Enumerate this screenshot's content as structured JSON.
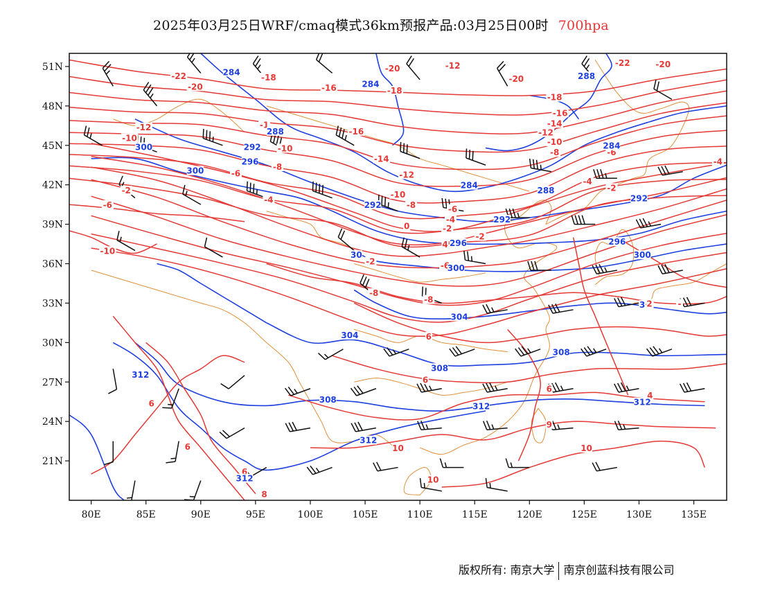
{
  "title": {
    "main": "2025年03月25日WRF/cmaq模式36km预报产品:03月25日00时",
    "level": "700hpa",
    "level_color": "#e33333"
  },
  "map": {
    "lon_range": [
      78,
      138
    ],
    "lat_range": [
      18,
      52
    ],
    "x_ticks": [
      {
        "lon": 80,
        "label": "80E"
      },
      {
        "lon": 85,
        "label": "85E"
      },
      {
        "lon": 90,
        "label": "90E"
      },
      {
        "lon": 95,
        "label": "95E"
      },
      {
        "lon": 100,
        "label": "100E"
      },
      {
        "lon": 105,
        "label": "105E"
      },
      {
        "lon": 110,
        "label": "110E"
      },
      {
        "lon": 115,
        "label": "115E"
      },
      {
        "lon": 120,
        "label": "120E"
      },
      {
        "lon": 125,
        "label": "125E"
      },
      {
        "lon": 130,
        "label": "130E"
      },
      {
        "lon": 135,
        "label": "135E"
      }
    ],
    "y_ticks": [
      {
        "lat": 51,
        "label": "51N"
      },
      {
        "lat": 48,
        "label": "48N"
      },
      {
        "lat": 45,
        "label": "45N"
      },
      {
        "lat": 42,
        "label": "42N"
      },
      {
        "lat": 39,
        "label": "39N"
      },
      {
        "lat": 36,
        "label": "36N"
      },
      {
        "lat": 33,
        "label": "33N"
      },
      {
        "lat": 30,
        "label": "30N"
      },
      {
        "lat": 27,
        "label": "27N"
      },
      {
        "lat": 24,
        "label": "24N"
      },
      {
        "lat": 21,
        "label": "21N"
      }
    ],
    "colors": {
      "temperature": "#e53935",
      "height": "#1e40e0",
      "boundary": "#e0903a",
      "wind": "#111111"
    },
    "temp_labels": [
      {
        "lon": 107.5,
        "lat": 50.8,
        "text": "-20"
      },
      {
        "lon": 88,
        "lat": 50.2,
        "text": "-22"
      },
      {
        "lon": 89.5,
        "lat": 49.4,
        "text": "-20"
      },
      {
        "lon": 96.2,
        "lat": 50.1,
        "text": "-18"
      },
      {
        "lon": 101.7,
        "lat": 49.3,
        "text": "-16"
      },
      {
        "lon": 107.7,
        "lat": 49.1,
        "text": "-18"
      },
      {
        "lon": 118.8,
        "lat": 50.0,
        "text": "-20"
      },
      {
        "lon": 113,
        "lat": 51.0,
        "text": "-12"
      },
      {
        "lon": 128.5,
        "lat": 51.2,
        "text": "-22"
      },
      {
        "lon": 132.2,
        "lat": 51.1,
        "text": "-20"
      },
      {
        "lon": 122.3,
        "lat": 48.6,
        "text": "-18"
      },
      {
        "lon": 122.8,
        "lat": 47.4,
        "text": "-16"
      },
      {
        "lon": 122.3,
        "lat": 46.6,
        "text": "-14"
      },
      {
        "lon": 121.5,
        "lat": 45.9,
        "text": "-12"
      },
      {
        "lon": 122.3,
        "lat": 45.2,
        "text": "-10"
      },
      {
        "lon": 122.3,
        "lat": 44.4,
        "text": "-8"
      },
      {
        "lon": 127.5,
        "lat": 44.4,
        "text": "-6"
      },
      {
        "lon": 137.2,
        "lat": 43.7,
        "text": "-4"
      },
      {
        "lon": 125.3,
        "lat": 42.2,
        "text": "-4"
      },
      {
        "lon": 127.5,
        "lat": 41.7,
        "text": "-2"
      },
      {
        "lon": 84.8,
        "lat": 46.3,
        "text": "-12"
      },
      {
        "lon": 83.5,
        "lat": 45.5,
        "text": "-10"
      },
      {
        "lon": 95.8,
        "lat": 46.5,
        "text": "-1"
      },
      {
        "lon": 97.7,
        "lat": 44.7,
        "text": "-10"
      },
      {
        "lon": 97.0,
        "lat": 43.3,
        "text": "-8"
      },
      {
        "lon": 104.2,
        "lat": 46.0,
        "text": "-16"
      },
      {
        "lon": 106.5,
        "lat": 43.9,
        "text": "-14"
      },
      {
        "lon": 108.8,
        "lat": 42.7,
        "text": "-12"
      },
      {
        "lon": 108.0,
        "lat": 41.2,
        "text": "-10"
      },
      {
        "lon": 109.2,
        "lat": 40.4,
        "text": "-8"
      },
      {
        "lon": 113.0,
        "lat": 40.1,
        "text": "-6"
      },
      {
        "lon": 112.8,
        "lat": 39.3,
        "text": "-4"
      },
      {
        "lon": 112.5,
        "lat": 38.6,
        "text": "-2"
      },
      {
        "lon": 115.5,
        "lat": 38.0,
        "text": "-2"
      },
      {
        "lon": 93.2,
        "lat": 42.8,
        "text": "-6"
      },
      {
        "lon": 96.2,
        "lat": 40.8,
        "text": "-4"
      },
      {
        "lon": 83.2,
        "lat": 41.5,
        "text": "-2"
      },
      {
        "lon": 81.5,
        "lat": 40.4,
        "text": "-6"
      },
      {
        "lon": 81.5,
        "lat": 36.9,
        "text": "-10"
      },
      {
        "lon": 108.8,
        "lat": 38.8,
        "text": "0"
      },
      {
        "lon": 105.5,
        "lat": 36.1,
        "text": "-2"
      },
      {
        "lon": 112.3,
        "lat": 37.4,
        "text": "4"
      },
      {
        "lon": 112.3,
        "lat": 35.8,
        "text": "-6"
      },
      {
        "lon": 105.8,
        "lat": 33.7,
        "text": "-8"
      },
      {
        "lon": 110.8,
        "lat": 33.2,
        "text": "-8"
      },
      {
        "lon": 130.8,
        "lat": 32.9,
        "text": "-2"
      },
      {
        "lon": 133.7,
        "lat": 32.9,
        "text": "-"
      },
      {
        "lon": 110.8,
        "lat": 30.4,
        "text": "6"
      },
      {
        "lon": 110.5,
        "lat": 27.1,
        "text": "6"
      },
      {
        "lon": 121.8,
        "lat": 26.4,
        "text": "6"
      },
      {
        "lon": 131.0,
        "lat": 25.9,
        "text": "4"
      },
      {
        "lon": 121.8,
        "lat": 23.7,
        "text": "9"
      },
      {
        "lon": 108.0,
        "lat": 21.9,
        "text": "10"
      },
      {
        "lon": 125.2,
        "lat": 21.9,
        "text": "10"
      },
      {
        "lon": 111.2,
        "lat": 19.5,
        "text": "10"
      },
      {
        "lon": 85.5,
        "lat": 25.3,
        "text": "6"
      },
      {
        "lon": 88.8,
        "lat": 22.0,
        "text": "6"
      },
      {
        "lon": 94.0,
        "lat": 20.1,
        "text": "6"
      },
      {
        "lon": 95.8,
        "lat": 18.4,
        "text": "8"
      }
    ],
    "height_labels": [
      {
        "lon": 92.8,
        "lat": 50.5,
        "text": "284"
      },
      {
        "lon": 105.5,
        "lat": 49.6,
        "text": "284"
      },
      {
        "lon": 125.2,
        "lat": 50.2,
        "text": "288"
      },
      {
        "lon": 96.8,
        "lat": 46.0,
        "text": "288"
      },
      {
        "lon": 94.7,
        "lat": 44.8,
        "text": "292"
      },
      {
        "lon": 84.8,
        "lat": 44.8,
        "text": "300"
      },
      {
        "lon": 89.5,
        "lat": 43.0,
        "text": "300"
      },
      {
        "lon": 94.5,
        "lat": 43.7,
        "text": "296"
      },
      {
        "lon": 114.5,
        "lat": 41.9,
        "text": "284"
      },
      {
        "lon": 121.5,
        "lat": 41.5,
        "text": "288"
      },
      {
        "lon": 130.0,
        "lat": 40.9,
        "text": "292"
      },
      {
        "lon": 127.5,
        "lat": 44.9,
        "text": "284"
      },
      {
        "lon": 105.7,
        "lat": 40.4,
        "text": "292"
      },
      {
        "lon": 117.5,
        "lat": 39.3,
        "text": "292"
      },
      {
        "lon": 113.5,
        "lat": 37.5,
        "text": "296"
      },
      {
        "lon": 128.0,
        "lat": 37.6,
        "text": "296"
      },
      {
        "lon": 104.2,
        "lat": 36.6,
        "text": "30"
      },
      {
        "lon": 113.3,
        "lat": 35.6,
        "text": "300"
      },
      {
        "lon": 130.3,
        "lat": 36.6,
        "text": "300"
      },
      {
        "lon": 113.6,
        "lat": 31.9,
        "text": "304"
      },
      {
        "lon": 103.6,
        "lat": 30.5,
        "text": "304"
      },
      {
        "lon": 130.3,
        "lat": 32.8,
        "text": "3"
      },
      {
        "lon": 122.9,
        "lat": 29.2,
        "text": "308"
      },
      {
        "lon": 111.8,
        "lat": 28.0,
        "text": "308"
      },
      {
        "lon": 101.6,
        "lat": 25.6,
        "text": "308"
      },
      {
        "lon": 115.6,
        "lat": 25.1,
        "text": "312"
      },
      {
        "lon": 130.3,
        "lat": 25.4,
        "text": "312"
      },
      {
        "lon": 84.5,
        "lat": 27.5,
        "text": "312"
      },
      {
        "lon": 105.3,
        "lat": 22.5,
        "text": "312"
      },
      {
        "lon": 94.0,
        "lat": 19.6,
        "text": "312"
      }
    ],
    "wind_barbs": [
      {
        "lon": 82,
        "lat": 49.5,
        "dir": 330,
        "kt": 25
      },
      {
        "lon": 86,
        "lat": 48,
        "dir": 320,
        "kt": 35
      },
      {
        "lon": 90,
        "lat": 50.5,
        "dir": 320,
        "kt": 25
      },
      {
        "lon": 96,
        "lat": 50,
        "dir": 320,
        "kt": 25
      },
      {
        "lon": 102,
        "lat": 50.5,
        "dir": 310,
        "kt": 20
      },
      {
        "lon": 110,
        "lat": 50,
        "dir": 320,
        "kt": 20
      },
      {
        "lon": 118,
        "lat": 49.5,
        "dir": 330,
        "kt": 20
      },
      {
        "lon": 126,
        "lat": 50,
        "dir": 320,
        "kt": 25
      },
      {
        "lon": 133,
        "lat": 48.5,
        "dir": 300,
        "kt": 20
      },
      {
        "lon": 81,
        "lat": 45,
        "dir": 300,
        "kt": 25
      },
      {
        "lon": 86,
        "lat": 44.5,
        "dir": 290,
        "kt": 35
      },
      {
        "lon": 92,
        "lat": 45,
        "dir": 290,
        "kt": 35
      },
      {
        "lon": 98,
        "lat": 44.5,
        "dir": 300,
        "kt": 40
      },
      {
        "lon": 104,
        "lat": 45,
        "dir": 300,
        "kt": 35
      },
      {
        "lon": 110,
        "lat": 44,
        "dir": 290,
        "kt": 30
      },
      {
        "lon": 116,
        "lat": 43.5,
        "dir": 290,
        "kt": 30
      },
      {
        "lon": 122,
        "lat": 43,
        "dir": 280,
        "kt": 35
      },
      {
        "lon": 128,
        "lat": 42.5,
        "dir": 270,
        "kt": 35
      },
      {
        "lon": 134,
        "lat": 43,
        "dir": 260,
        "kt": 30
      },
      {
        "lon": 84,
        "lat": 41,
        "dir": 310,
        "kt": 15
      },
      {
        "lon": 90,
        "lat": 40.5,
        "dir": 300,
        "kt": 15
      },
      {
        "lon": 96,
        "lat": 41,
        "dir": 290,
        "kt": 35
      },
      {
        "lon": 102,
        "lat": 41,
        "dir": 290,
        "kt": 40
      },
      {
        "lon": 108,
        "lat": 40,
        "dir": 290,
        "kt": 35
      },
      {
        "lon": 114,
        "lat": 40,
        "dir": 280,
        "kt": 30
      },
      {
        "lon": 120,
        "lat": 39.5,
        "dir": 270,
        "kt": 35
      },
      {
        "lon": 126,
        "lat": 39,
        "dir": 270,
        "kt": 40
      },
      {
        "lon": 132,
        "lat": 39,
        "dir": 260,
        "kt": 35
      },
      {
        "lon": 84,
        "lat": 37,
        "dir": 300,
        "kt": 15
      },
      {
        "lon": 92,
        "lat": 36.5,
        "dir": 300,
        "kt": 10
      },
      {
        "lon": 104,
        "lat": 37,
        "dir": 310,
        "kt": 20
      },
      {
        "lon": 110,
        "lat": 36.5,
        "dir": 300,
        "kt": 25
      },
      {
        "lon": 116,
        "lat": 36,
        "dir": 280,
        "kt": 25
      },
      {
        "lon": 122,
        "lat": 35.5,
        "dir": 270,
        "kt": 30
      },
      {
        "lon": 128,
        "lat": 35.5,
        "dir": 260,
        "kt": 35
      },
      {
        "lon": 134,
        "lat": 35.5,
        "dir": 260,
        "kt": 30
      },
      {
        "lon": 106,
        "lat": 33.5,
        "dir": 310,
        "kt": 30
      },
      {
        "lon": 112,
        "lat": 33,
        "dir": 290,
        "kt": 20
      },
      {
        "lon": 118,
        "lat": 32.5,
        "dir": 260,
        "kt": 25
      },
      {
        "lon": 124,
        "lat": 32.5,
        "dir": 260,
        "kt": 30
      },
      {
        "lon": 130,
        "lat": 33,
        "dir": 260,
        "kt": 30
      },
      {
        "lon": 136,
        "lat": 33,
        "dir": 260,
        "kt": 30
      },
      {
        "lon": 103,
        "lat": 29.5,
        "dir": 240,
        "kt": 15
      },
      {
        "lon": 109,
        "lat": 29.5,
        "dir": 250,
        "kt": 25
      },
      {
        "lon": 115,
        "lat": 29.5,
        "dir": 250,
        "kt": 30
      },
      {
        "lon": 121,
        "lat": 29.5,
        "dir": 250,
        "kt": 35
      },
      {
        "lon": 127,
        "lat": 29.5,
        "dir": 250,
        "kt": 35
      },
      {
        "lon": 133,
        "lat": 29.5,
        "dir": 250,
        "kt": 35
      },
      {
        "lon": 82,
        "lat": 28,
        "dir": 170,
        "kt": 10
      },
      {
        "lon": 88,
        "lat": 26.5,
        "dir": 200,
        "kt": 15
      },
      {
        "lon": 94,
        "lat": 27.5,
        "dir": 230,
        "kt": 10
      },
      {
        "lon": 100,
        "lat": 26.5,
        "dir": 250,
        "kt": 25
      },
      {
        "lon": 106,
        "lat": 26.5,
        "dir": 250,
        "kt": 30
      },
      {
        "lon": 112,
        "lat": 26.5,
        "dir": 260,
        "kt": 35
      },
      {
        "lon": 118,
        "lat": 26.5,
        "dir": 260,
        "kt": 35
      },
      {
        "lon": 124,
        "lat": 26.5,
        "dir": 260,
        "kt": 35
      },
      {
        "lon": 130,
        "lat": 26.5,
        "dir": 260,
        "kt": 35
      },
      {
        "lon": 136,
        "lat": 26.5,
        "dir": 260,
        "kt": 30
      },
      {
        "lon": 82,
        "lat": 22.5,
        "dir": 180,
        "kt": 10
      },
      {
        "lon": 88,
        "lat": 22.5,
        "dir": 190,
        "kt": 15
      },
      {
        "lon": 94,
        "lat": 23.5,
        "dir": 240,
        "kt": 20
      },
      {
        "lon": 100,
        "lat": 23.5,
        "dir": 260,
        "kt": 30
      },
      {
        "lon": 106,
        "lat": 23.5,
        "dir": 260,
        "kt": 30
      },
      {
        "lon": 112,
        "lat": 23.5,
        "dir": 265,
        "kt": 25
      },
      {
        "lon": 118,
        "lat": 23.5,
        "dir": 265,
        "kt": 25
      },
      {
        "lon": 124,
        "lat": 23.5,
        "dir": 265,
        "kt": 25
      },
      {
        "lon": 130,
        "lat": 23.5,
        "dir": 265,
        "kt": 25
      },
      {
        "lon": 84,
        "lat": 19.5,
        "dir": 190,
        "kt": 15
      },
      {
        "lon": 90,
        "lat": 19.5,
        "dir": 200,
        "kt": 15
      },
      {
        "lon": 96,
        "lat": 20.5,
        "dir": 240,
        "kt": 20
      },
      {
        "lon": 102,
        "lat": 20.5,
        "dir": 250,
        "kt": 25
      },
      {
        "lon": 108,
        "lat": 20.5,
        "dir": 260,
        "kt": 20
      },
      {
        "lon": 114,
        "lat": 20.5,
        "dir": 270,
        "kt": 15
      },
      {
        "lon": 120,
        "lat": 20.5,
        "dir": 270,
        "kt": 15
      },
      {
        "lon": 128,
        "lat": 20.5,
        "dir": 260,
        "kt": 20
      },
      {
        "lon": 112,
        "lat": 18.7,
        "dir": 280,
        "kt": 15
      },
      {
        "lon": 118,
        "lat": 18.7,
        "dir": 280,
        "kt": 15
      }
    ]
  },
  "footer": {
    "copyright": "版权所有: 南京大学",
    "company": "南京创蓝科技有限公司"
  }
}
